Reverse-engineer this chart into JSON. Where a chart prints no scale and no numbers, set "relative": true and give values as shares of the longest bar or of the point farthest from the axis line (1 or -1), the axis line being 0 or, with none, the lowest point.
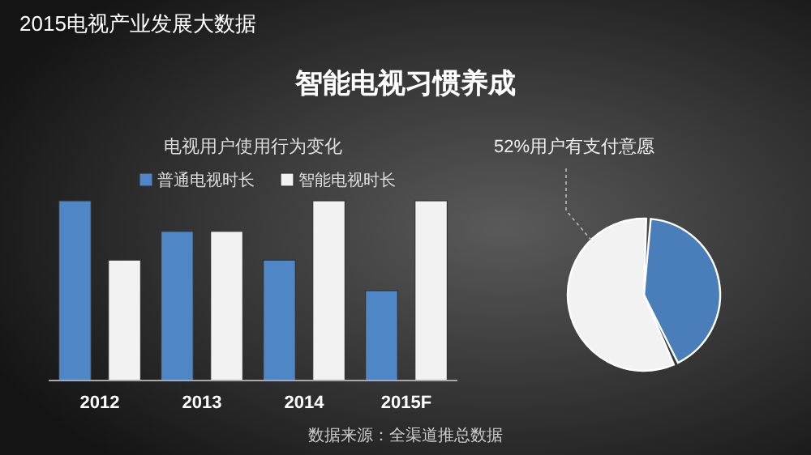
{
  "chart_data": [
    {
      "type": "bar",
      "title": "电视用户使用行为变化",
      "relative": true,
      "legend": "top",
      "categories": [
        "2012",
        "2013",
        "2014",
        "2015F"
      ],
      "series": [
        {
          "name": "普通电视时长",
          "color": "#4f86c6",
          "values": [
            1,
            0.83,
            0.67,
            0.5
          ]
        },
        {
          "name": "智能电视时长",
          "color": "#f2f2f2",
          "values": [
            0.67,
            0.83,
            1,
            1
          ]
        }
      ],
      "annotations": [
        "2015电视产业发展大数据",
        "智能电视习惯养成",
        "数据来源：全渠道推总数据"
      ]
    },
    {
      "type": "pie",
      "title": "52%用户有支付意愿",
      "categories": [
        null,
        null
      ],
      "values": [
        42,
        58
      ],
      "colors": [
        "#4a7ebb",
        "#f2f2f2"
      ]
    }
  ]
}
